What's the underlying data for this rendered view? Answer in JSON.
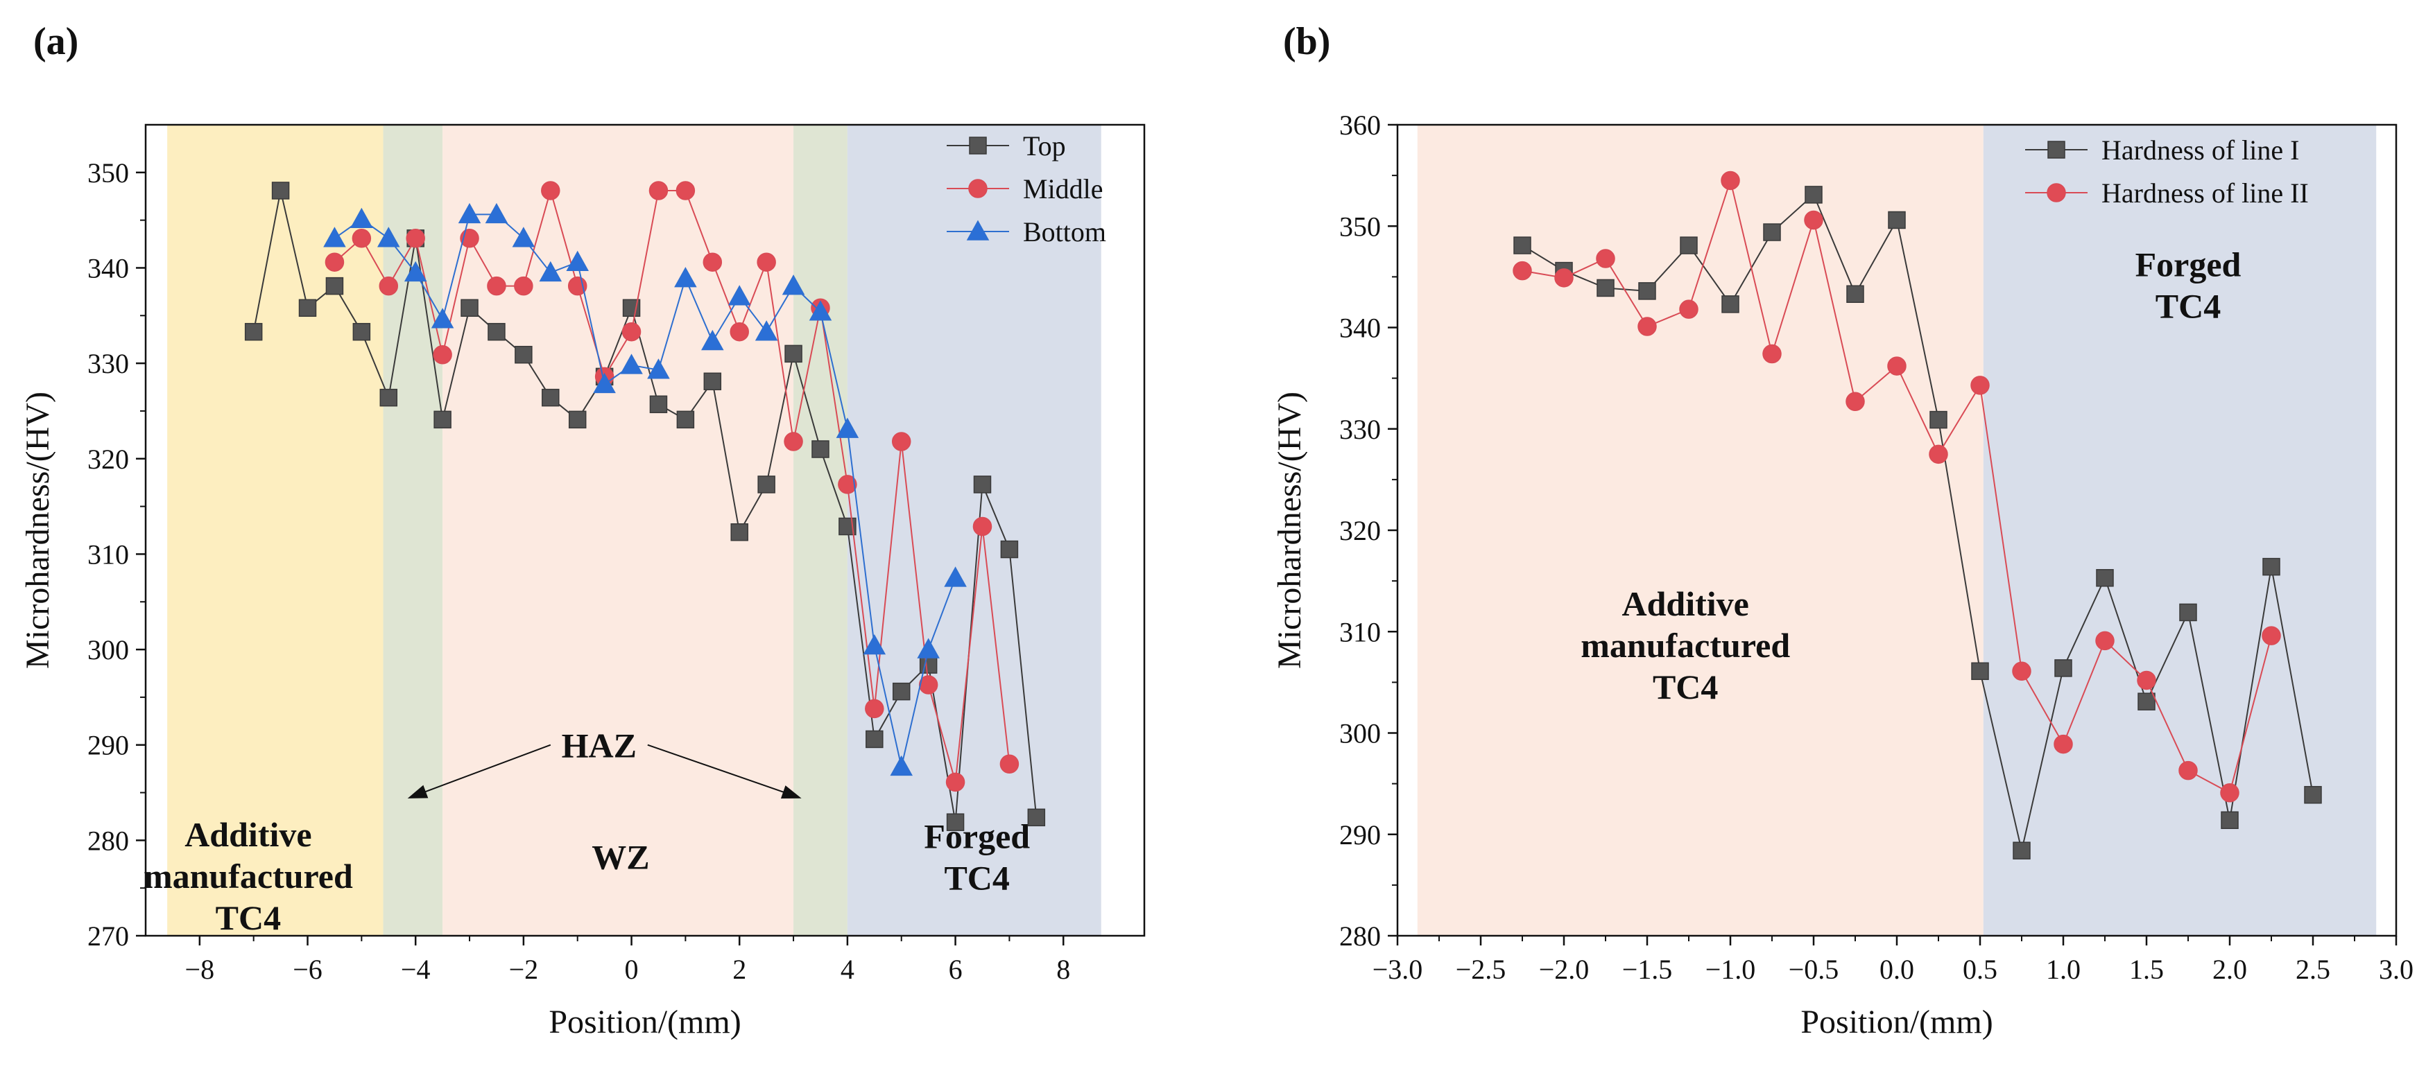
{
  "chart_data": [
    {
      "panel_label": "(a)",
      "type": "line",
      "xlabel": "Position/(mm)",
      "ylabel": "Microhardness/(HV)",
      "xlim": [
        -9,
        9.5
      ],
      "ylim": [
        270,
        355
      ],
      "xticks": [
        -8,
        -6,
        -4,
        -2,
        0,
        2,
        4,
        6,
        8
      ],
      "yticks": [
        270,
        280,
        290,
        300,
        310,
        320,
        330,
        340,
        350
      ],
      "regions": [
        {
          "label": "Additive manufactured TC4",
          "lines": [
            "Additive",
            "manufactured",
            "TC4"
          ],
          "x": [
            -8.6,
            -4.6
          ],
          "color": "#fdeec0",
          "label_pos": [
            -7.1,
            275
          ]
        },
        {
          "label": "HAZ (left)",
          "x": [
            -4.6,
            -3.5
          ],
          "color": "#dfe5d3"
        },
        {
          "label": "WZ",
          "lines": [
            "WZ"
          ],
          "x": [
            -3.5,
            3.0
          ],
          "color": "#fceae1",
          "label_pos": [
            -0.2,
            277
          ]
        },
        {
          "label": "HAZ (right)",
          "x": [
            3.0,
            4.0
          ],
          "color": "#dfe5d3"
        },
        {
          "label": "Forged TC4",
          "lines": [
            "Forged",
            "TC4"
          ],
          "x": [
            4.0,
            8.7
          ],
          "color": "#d8deea",
          "label_pos": [
            6.4,
            277
          ]
        }
      ],
      "annotation": {
        "text": "HAZ",
        "text_pos": [
          -0.6,
          290
        ],
        "arrow_targets": [
          [
            -4.1,
            284.5
          ],
          [
            3.1,
            284.5
          ]
        ]
      },
      "legend": "top-right",
      "series": [
        {
          "name": "Top",
          "color": "#3a3a3a",
          "fill": "#555555",
          "marker": "square",
          "x": [
            -7,
            -6.5,
            -6,
            -5.5,
            -5,
            -4.5,
            -4,
            -3.5,
            -3,
            -2.5,
            -2,
            -1.5,
            -1,
            -0.5,
            0,
            0.5,
            1,
            1.5,
            2,
            2.5,
            3,
            3.5,
            4,
            4.5,
            5,
            5.5,
            6,
            6.5,
            7,
            7.5
          ],
          "y": [
            333.3,
            348.1,
            335.8,
            338.1,
            333.3,
            326.4,
            343.1,
            324.1,
            335.8,
            333.3,
            330.9,
            326.4,
            324.1,
            328.6,
            335.8,
            325.7,
            324.1,
            328.1,
            312.3,
            317.3,
            331.0,
            321.0,
            312.9,
            290.6,
            295.6,
            298.4,
            281.9,
            317.3,
            310.5,
            282.4
          ]
        },
        {
          "name": "Middle",
          "color": "#d94b55",
          "fill": "#e04b55",
          "marker": "circle",
          "x": [
            -5.5,
            -5,
            -4.5,
            -4,
            -3.5,
            -3,
            -2.5,
            -2,
            -1.5,
            -1,
            -0.5,
            0,
            0.5,
            1,
            1.5,
            2,
            2.5,
            3,
            3.5,
            4,
            4.5,
            5,
            5.5,
            6,
            6.5,
            7
          ],
          "y": [
            340.6,
            343.1,
            338.1,
            343.1,
            330.9,
            343.1,
            338.1,
            338.1,
            348.1,
            338.1,
            328.6,
            333.3,
            348.1,
            348.1,
            340.6,
            333.3,
            340.6,
            321.8,
            335.8,
            317.3,
            293.8,
            321.8,
            296.3,
            286.1,
            312.9,
            288.0
          ]
        },
        {
          "name": "Bottom",
          "color": "#2e6fd0",
          "fill": "#2b6fd6",
          "marker": "triangle",
          "x": [
            -5.5,
            -5,
            -4.5,
            -4,
            -3.5,
            -3,
            -2.5,
            -2,
            -1.5,
            -1,
            -0.5,
            0,
            0.5,
            1,
            1.5,
            2,
            2.5,
            3,
            3.5,
            4,
            4.5,
            5,
            5.5,
            6
          ],
          "y": [
            343.1,
            345.1,
            343.1,
            339.5,
            334.6,
            345.6,
            345.6,
            343.1,
            339.5,
            340.6,
            327.8,
            329.8,
            329.3,
            338.9,
            332.3,
            337.0,
            333.3,
            338.1,
            335.4,
            323.1,
            300.4,
            287.7,
            300.0,
            307.5
          ]
        }
      ]
    },
    {
      "panel_label": "(b)",
      "type": "line",
      "xlabel": "Position/(mm)",
      "ylabel": "Microhardness/(HV)",
      "xlim": [
        -3.0,
        3.0
      ],
      "ylim": [
        280,
        360
      ],
      "xticks": [
        -3.0,
        -2.5,
        -2.0,
        -1.5,
        -1.0,
        -0.5,
        0.0,
        0.5,
        1.0,
        1.5,
        2.0,
        2.5,
        3.0
      ],
      "xtick_labels": [
        "−3.0",
        "−2.5",
        "−2.0",
        "−1.5",
        "−1.0",
        "−0.5",
        "0.0",
        "0.5",
        "1.0",
        "1.5",
        "2.0",
        "2.5",
        "3.0"
      ],
      "yticks": [
        280,
        290,
        300,
        310,
        320,
        330,
        340,
        350,
        360
      ],
      "regions": [
        {
          "label": "Additive manufactured TC4",
          "lines": [
            "Additive",
            "manufactured",
            "TC4"
          ],
          "x": [
            -2.88,
            0.52
          ],
          "color": "#fceae1",
          "label_pos": [
            -1.27,
            307.5
          ]
        },
        {
          "label": "Forged TC4",
          "lines": [
            "Forged",
            "TC4"
          ],
          "x": [
            0.52,
            2.88
          ],
          "color": "#d8deea",
          "label_pos": [
            1.75,
            343
          ]
        }
      ],
      "legend": "top-right",
      "series": [
        {
          "name": "Hardness of line I",
          "color": "#3a3a3a",
          "fill": "#555555",
          "marker": "square",
          "x": [
            -2.25,
            -2.0,
            -1.75,
            -1.5,
            -1.25,
            -1.0,
            -0.75,
            -0.5,
            -0.25,
            0.0,
            0.25,
            0.5,
            0.75,
            1.0,
            1.25,
            1.5,
            1.75,
            2.0,
            2.25,
            2.5
          ],
          "y": [
            348.1,
            345.6,
            343.9,
            343.6,
            348.1,
            342.3,
            349.4,
            353.1,
            343.3,
            350.6,
            330.9,
            306.1,
            288.4,
            306.4,
            315.3,
            303.1,
            311.9,
            291.4,
            316.4,
            293.9
          ]
        },
        {
          "name": "Hardness of line II",
          "color": "#d94b55",
          "fill": "#e04b55",
          "marker": "circle",
          "x": [
            -2.25,
            -2.0,
            -1.75,
            -1.5,
            -1.25,
            -1.0,
            -0.75,
            -0.5,
            -0.25,
            0.0,
            0.25,
            0.5,
            0.75,
            1.0,
            1.25,
            1.5,
            1.75,
            2.0,
            2.25
          ],
          "y": [
            345.6,
            344.9,
            346.8,
            340.1,
            341.8,
            354.5,
            337.4,
            350.6,
            332.7,
            336.2,
            327.5,
            334.3,
            306.1,
            298.9,
            309.1,
            305.2,
            296.3,
            294.1,
            309.6
          ]
        }
      ]
    }
  ]
}
